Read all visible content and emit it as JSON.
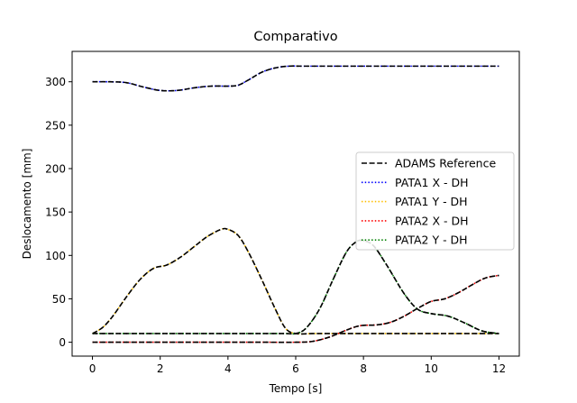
{
  "chart_data": {
    "type": "line",
    "title": "Comparativo",
    "xlabel": "Tempo [s]",
    "ylabel": "Deslocamento [mm]",
    "xlim": [
      -0.6,
      12.6
    ],
    "ylim": [
      -16,
      335
    ],
    "xticks": [
      0,
      2,
      4,
      6,
      8,
      10,
      12
    ],
    "yticks": [
      0,
      50,
      100,
      150,
      200,
      250,
      300
    ],
    "grid": false,
    "legend_position": "center-right",
    "reference": {
      "name": "ADAMS Reference",
      "color": "#000000",
      "style": "dashed"
    },
    "series": [
      {
        "name": "PATA1 X - DH",
        "color": "#0000ff",
        "style": "dotted",
        "x": [
          0,
          0.5,
          1.0,
          1.5,
          2.0,
          2.5,
          3.0,
          3.5,
          4.0,
          4.3,
          4.6,
          5.0,
          5.4,
          5.8,
          6.2,
          7,
          8,
          9,
          10,
          11,
          12
        ],
        "y": [
          300,
          300,
          299,
          294,
          290,
          290,
          293,
          295,
          295,
          296,
          302,
          311,
          316,
          318,
          318,
          318,
          318,
          318,
          318,
          318,
          318
        ]
      },
      {
        "name": "PATA1 Y - DH",
        "color": "#ffbf00",
        "style": "dotted",
        "x": [
          0,
          0.3,
          0.6,
          1.0,
          1.4,
          1.8,
          2.2,
          2.6,
          3.0,
          3.4,
          3.8,
          4.0,
          4.3,
          4.6,
          5.0,
          5.4,
          5.7,
          6.0,
          6.5,
          7,
          8,
          9,
          10,
          11,
          12
        ],
        "y": [
          10,
          17,
          30,
          52,
          72,
          85,
          89,
          98,
          110,
          122,
          130,
          130,
          123,
          104,
          72,
          38,
          16,
          10,
          10,
          10,
          10,
          10,
          10,
          10,
          10
        ]
      },
      {
        "name": "PATA2 X - DH",
        "color": "#ff0000",
        "style": "dotted",
        "x": [
          0,
          1,
          2,
          3,
          4,
          5,
          6,
          6.5,
          7.0,
          7.5,
          7.9,
          8.4,
          8.8,
          9.2,
          9.6,
          10.0,
          10.4,
          10.8,
          11.2,
          11.6,
          12
        ],
        "y": [
          0,
          0,
          0,
          0,
          0,
          0,
          0,
          1,
          6,
          14,
          19,
          20,
          23,
          30,
          39,
          47,
          50,
          57,
          66,
          74,
          77
        ]
      },
      {
        "name": "PATA2 Y - DH",
        "color": "#008000",
        "style": "dotted",
        "x": [
          0,
          1,
          2,
          3,
          4,
          5,
          5.7,
          6.0,
          6.3,
          6.7,
          7.1,
          7.5,
          7.8,
          8.0,
          8.3,
          8.7,
          9.2,
          9.6,
          10.0,
          10.5,
          11.0,
          11.5,
          12
        ],
        "y": [
          10,
          10,
          10,
          10,
          10,
          10,
          10,
          10,
          16,
          38,
          72,
          104,
          116,
          117,
          111,
          88,
          56,
          38,
          33,
          30,
          22,
          13,
          10
        ]
      }
    ]
  }
}
